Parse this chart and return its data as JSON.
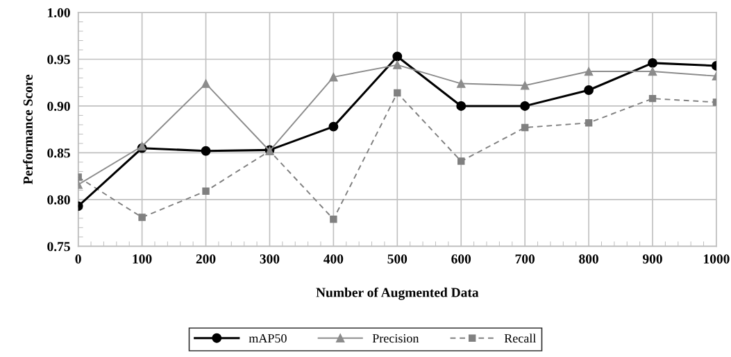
{
  "chart_data": {
    "type": "line",
    "xlabel": "Number of Augmented Data",
    "ylabel": "Performance Score",
    "x": [
      0,
      100,
      200,
      300,
      400,
      500,
      600,
      700,
      800,
      900,
      1000
    ],
    "xlim": [
      0,
      1000
    ],
    "xticks": [
      0,
      100,
      200,
      300,
      400,
      500,
      600,
      700,
      800,
      900,
      1000
    ],
    "ylim": [
      0.75,
      1.0
    ],
    "yticks": [
      {
        "value": 0.75,
        "label": "0.75"
      },
      {
        "value": 0.8,
        "label": "0.80"
      },
      {
        "value": 0.85,
        "label": "0.85"
      },
      {
        "value": 0.9,
        "label": "0.90"
      },
      {
        "value": 0.95,
        "label": "0.95"
      },
      {
        "value": 1.0,
        "label": "1.00"
      }
    ],
    "grid": true,
    "legend": "bottom",
    "series": [
      {
        "name": "mAP50",
        "color": "#000000",
        "marker": "circle",
        "line_style": "solid",
        "values": [
          0.793,
          0.855,
          0.852,
          0.853,
          0.878,
          0.953,
          0.9,
          0.9,
          0.917,
          0.946,
          0.943
        ]
      },
      {
        "name": "Precision",
        "color": "#8c8c8c",
        "marker": "triangle",
        "line_style": "solid",
        "values": [
          0.816,
          0.857,
          0.924,
          0.852,
          0.931,
          0.944,
          0.924,
          0.922,
          0.937,
          0.937,
          0.932
        ]
      },
      {
        "name": "Recall",
        "color": "#808080",
        "marker": "square",
        "line_style": "dashed",
        "values": [
          0.824,
          0.781,
          0.809,
          0.852,
          0.779,
          0.914,
          0.841,
          0.877,
          0.882,
          0.908,
          0.904
        ]
      }
    ]
  }
}
